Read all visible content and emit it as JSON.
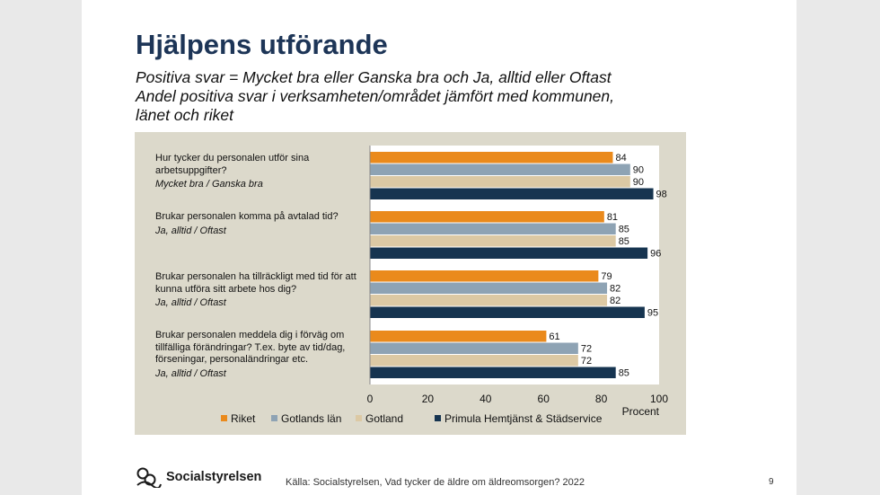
{
  "slide": {
    "title": "Hjälpens utförande",
    "subtitle_lines": [
      "Positiva svar = Mycket bra eller Ganska bra och Ja, alltid eller Oftast",
      "Andel positiva svar i verksamheten/området jämfört med kommunen,",
      "länet och riket"
    ],
    "source": "Källa: Socialstyrelsen, Vad tycker de äldre om äldreomsorgen? 2022",
    "page_number": "9",
    "logo_text": "Socialstyrelsen"
  },
  "chart_data": {
    "type": "bar",
    "orientation": "horizontal",
    "title": "",
    "categories": [
      {
        "question": "Hur tycker du personalen utför sina arbetsuppgifter?",
        "note": "Mycket bra / Ganska bra"
      },
      {
        "question": "Brukar personalen komma på avtalad tid?",
        "note": "Ja, alltid / Oftast"
      },
      {
        "question": "Brukar personalen ha tillräckligt med tid för att kunna utföra sitt arbete hos dig?",
        "note": "Ja, alltid / Oftast"
      },
      {
        "question": "Brukar personalen meddela dig i förväg om tillfälliga förändringar? T.ex. byte av tid/dag, förseningar, personaländringar etc.",
        "note": "Ja, alltid / Oftast"
      }
    ],
    "series": [
      {
        "name": "Riket",
        "color": "#ea8a1c",
        "values": [
          84,
          81,
          79,
          61
        ]
      },
      {
        "name": "Gotlands län",
        "color": "#8ea3b4",
        "values": [
          90,
          85,
          82,
          72
        ]
      },
      {
        "name": "Gotland",
        "color": "#dcc9a4",
        "values": [
          90,
          85,
          82,
          72
        ]
      },
      {
        "name": "Primula Hemtjänst & Städservice",
        "color": "#163450",
        "values": [
          98,
          96,
          95,
          85
        ]
      }
    ],
    "xlim": [
      0,
      100
    ],
    "xticks": [
      0,
      20,
      40,
      60,
      80,
      100
    ],
    "xlabel": "Procent",
    "ylabel": "",
    "grid": false,
    "legend": "bottom"
  }
}
